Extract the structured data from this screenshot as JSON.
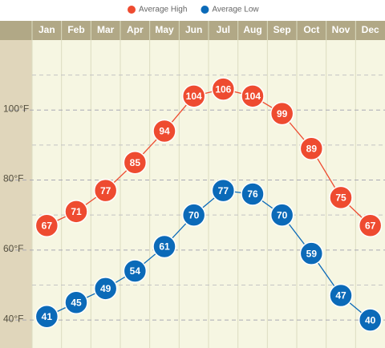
{
  "chart_data": {
    "type": "line",
    "categories": [
      "Jan",
      "Feb",
      "Mar",
      "Apr",
      "May",
      "Jun",
      "Jul",
      "Aug",
      "Sep",
      "Oct",
      "Nov",
      "Dec"
    ],
    "series": [
      {
        "name": "Average High",
        "color": "#ee4b30",
        "values": [
          67,
          71,
          77,
          85,
          94,
          104,
          106,
          104,
          99,
          89,
          75,
          67
        ]
      },
      {
        "name": "Average Low",
        "color": "#0b6ab8",
        "values": [
          41,
          45,
          49,
          54,
          61,
          70,
          77,
          76,
          70,
          59,
          47,
          40
        ]
      }
    ],
    "ylim": [
      32,
      120
    ],
    "yticks": [
      {
        "value": 40,
        "label": "40°F"
      },
      {
        "value": 60,
        "label": "60°F"
      },
      {
        "value": 80,
        "label": "80°F"
      },
      {
        "value": 100,
        "label": "100°F"
      }
    ],
    "minor_yticks": [
      50,
      70,
      90,
      110
    ],
    "grid": true,
    "legend": "top"
  }
}
